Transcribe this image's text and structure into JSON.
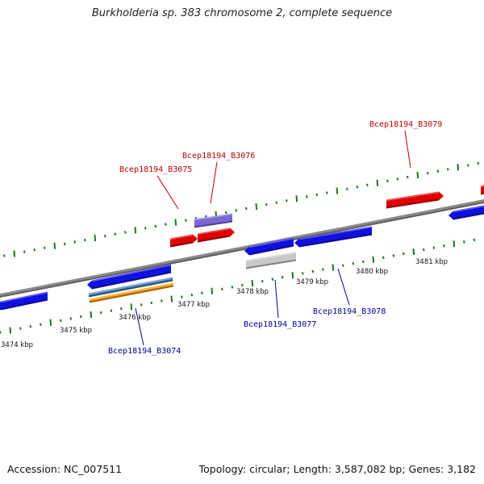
{
  "title": "Burkholderia sp. 383 chromosome 2, complete sequence",
  "footer": {
    "accession": "Accession: NC_007511",
    "topology": "Topology: circular; Length: 3,587,082 bp; Genes: 3,182"
  },
  "colors": {
    "forward_gene": "#e00000",
    "reverse_gene": "#1010e0",
    "purple_gene": "#7b68d8",
    "gray_gene": "#c8c8c8",
    "steel_gene": "#4682b4",
    "orange_gene": "#ff9a00",
    "backbone": "#8a8a8a",
    "ticks": "#1a7a1a",
    "label_red": "#c00000",
    "label_blue": "#000099"
  },
  "scale_labels": [
    "3474 kbp",
    "3475 kbp",
    "3476 kbp",
    "3477 kbp",
    "3478 kbp",
    "3479 kbp",
    "3480 kbp",
    "3481 kbp"
  ],
  "genes": [
    {
      "label": "Bcep18194_B3074",
      "strand": "reverse"
    },
    {
      "label": "Bcep18194_B3075",
      "strand": "forward"
    },
    {
      "label": "Bcep18194_B3076",
      "strand": "forward"
    },
    {
      "label": "Bcep18194_B3077",
      "strand": "reverse"
    },
    {
      "label": "Bcep18194_B3078",
      "strand": "reverse"
    },
    {
      "label": "Bcep18194_B3079",
      "strand": "forward"
    }
  ]
}
